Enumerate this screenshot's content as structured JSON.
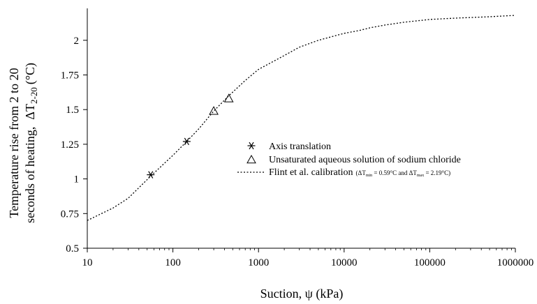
{
  "chart_data": {
    "type": "scatter",
    "title": "",
    "xlabel": "Suction, ψ (kPa)",
    "ylabel_line1": "Temperature rise from 2 to 20",
    "ylabel_line2_prefix": "seconds of heating,",
    "ylabel_line2_symbol": "ΔT",
    "ylabel_line2_subscript": "2-20",
    "ylabel_line2_unit": "(°C)",
    "x_scale": "log",
    "xlim": [
      10,
      1000000
    ],
    "ylim": [
      0.5,
      2.2
    ],
    "x_ticks": [
      {
        "value": 10,
        "label": "10"
      },
      {
        "value": 100,
        "label": "100"
      },
      {
        "value": 1000,
        "label": "1000"
      },
      {
        "value": 10000,
        "label": "10000"
      },
      {
        "value": 100000,
        "label": "100000"
      },
      {
        "value": 1000000,
        "label": "1000000"
      }
    ],
    "y_ticks": [
      {
        "value": 0.5,
        "label": "0.5"
      },
      {
        "value": 0.75,
        "label": "0.75"
      },
      {
        "value": 1,
        "label": "1"
      },
      {
        "value": 1.25,
        "label": "1.25"
      },
      {
        "value": 1.5,
        "label": "1.5"
      },
      {
        "value": 1.75,
        "label": "1.75"
      },
      {
        "value": 2,
        "label": "2"
      }
    ],
    "grid": false,
    "legend_position": "center-right",
    "series": [
      {
        "name": "Axis translation",
        "marker": "asterisk",
        "x": [
          55,
          145
        ],
        "y": [
          1.03,
          1.27
        ]
      },
      {
        "name": "Unsaturated aqueous solution of sodium chloride",
        "marker": "triangle",
        "x": [
          300,
          450
        ],
        "y": [
          1.49,
          1.58
        ]
      },
      {
        "name": "Flint et al. calibration",
        "name_note": "(ΔTmin = 0.59°C and ΔTmax = 2.19°C)",
        "style": "dotted-line",
        "x": [
          10,
          20,
          30,
          55,
          100,
          145,
          200,
          300,
          450,
          700,
          1000,
          2000,
          3000,
          5000,
          10000,
          15000,
          20000,
          30000,
          50000,
          100000,
          200000,
          500000,
          1000000
        ],
        "y": [
          0.7,
          0.79,
          0.86,
          1.02,
          1.17,
          1.27,
          1.36,
          1.49,
          1.6,
          1.71,
          1.79,
          1.89,
          1.95,
          2.0,
          2.05,
          2.07,
          2.09,
          2.11,
          2.13,
          2.15,
          2.16,
          2.17,
          2.18
        ]
      }
    ],
    "legend": {
      "asterisk_label": "Axis translation",
      "triangle_label": "Unsaturated aqueous solution of sodium chloride",
      "line_label": "Flint et al. calibration",
      "line_note_open": "(ΔT",
      "line_note_min_sub": "min",
      "line_note_mid": " = 0.59°C and ΔT",
      "line_note_max_sub": "max",
      "line_note_close": " = 2.19°C)"
    }
  }
}
